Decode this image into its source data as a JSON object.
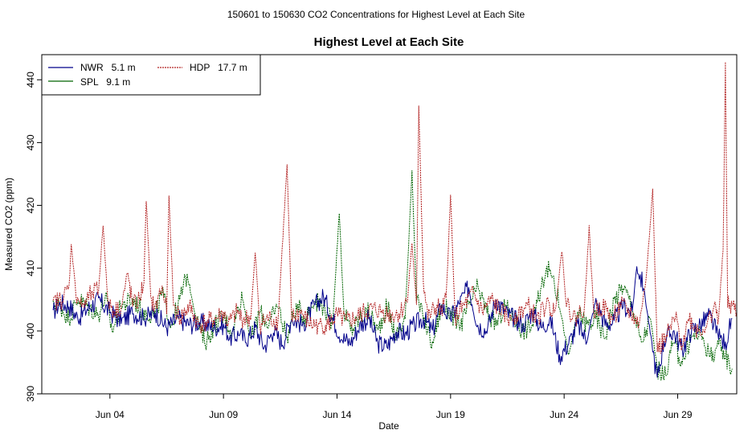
{
  "chart_data": {
    "type": "line",
    "suptitle": "150601  to  150630 CO2 Concentrations for Highest Level at Each Site",
    "title": "Highest Level at Each Site",
    "xlabel": "Date",
    "ylabel": "Measured CO2 (ppm)",
    "xlim_days": [
      0,
      30.6
    ],
    "ylim": [
      390,
      444
    ],
    "x_ticks": [
      {
        "day": 3,
        "label": "Jun 04"
      },
      {
        "day": 8,
        "label": "Jun 09"
      },
      {
        "day": 13,
        "label": "Jun 14"
      },
      {
        "day": 18,
        "label": "Jun 19"
      },
      {
        "day": 23,
        "label": "Jun 24"
      },
      {
        "day": 28,
        "label": "Jun 29"
      }
    ],
    "y_ticks": [
      390,
      400,
      410,
      420,
      430,
      440
    ],
    "legend_position": "top-left",
    "series": [
      {
        "name": "NWR   5.1 m",
        "color": "#00008b",
        "points": [
          [
            0.5,
            403
          ],
          [
            0.8,
            404.5
          ],
          [
            1.2,
            404
          ],
          [
            1.6,
            402
          ],
          [
            2,
            403.5
          ],
          [
            2.5,
            405
          ],
          [
            3,
            403
          ],
          [
            3.5,
            401.5
          ],
          [
            4,
            403
          ],
          [
            4.5,
            402
          ],
          [
            5,
            403
          ],
          [
            5.5,
            400.5
          ],
          [
            6,
            402
          ],
          [
            6.5,
            401
          ],
          [
            7,
            401.5
          ],
          [
            7.5,
            400.5
          ],
          [
            8,
            401
          ],
          [
            8.3,
            399
          ],
          [
            8.7,
            399.5
          ],
          [
            9,
            398.5
          ],
          [
            9.4,
            400.5
          ],
          [
            9.8,
            397.5
          ],
          [
            10.2,
            400
          ],
          [
            10.6,
            398
          ],
          [
            11,
            402
          ],
          [
            11.5,
            401
          ],
          [
            12,
            404
          ],
          [
            12.4,
            405.5
          ],
          [
            12.8,
            402
          ],
          [
            13.2,
            399
          ],
          [
            13.6,
            398
          ],
          [
            14,
            401
          ],
          [
            14.4,
            402
          ],
          [
            14.8,
            398
          ],
          [
            15.2,
            397.5
          ],
          [
            15.6,
            400
          ],
          [
            16,
            399.5
          ],
          [
            16.4,
            401
          ],
          [
            16.8,
            402
          ],
          [
            17.2,
            400
          ],
          [
            17.6,
            404
          ],
          [
            18,
            402
          ],
          [
            18.4,
            404.5
          ],
          [
            18.8,
            407
          ],
          [
            19.2,
            401
          ],
          [
            19.6,
            400
          ],
          [
            20,
            405
          ],
          [
            20.4,
            403
          ],
          [
            20.8,
            402
          ],
          [
            21.2,
            401
          ],
          [
            21.6,
            403
          ],
          [
            22,
            400.5
          ],
          [
            22.4,
            402
          ],
          [
            22.8,
            396
          ],
          [
            23.2,
            398
          ],
          [
            23.6,
            401
          ],
          [
            24,
            398.5
          ],
          [
            24.4,
            405
          ],
          [
            24.8,
            401
          ],
          [
            25.2,
            401.5
          ],
          [
            25.6,
            404
          ],
          [
            26,
            403
          ],
          [
            26.2,
            410.5
          ],
          [
            26.5,
            407
          ],
          [
            26.9,
            397
          ],
          [
            27.1,
            392.5
          ],
          [
            27.4,
            398.5
          ],
          [
            27.8,
            400
          ],
          [
            28.2,
            397
          ],
          [
            28.6,
            400
          ],
          [
            29,
            401
          ],
          [
            29.4,
            402.5
          ],
          [
            29.8,
            399
          ],
          [
            30.1,
            398
          ],
          [
            30.4,
            402
          ]
        ]
      },
      {
        "name": "SPL   9.1 m",
        "color": "#006400",
        "points": [
          [
            0.5,
            404.5
          ],
          [
            0.8,
            404
          ],
          [
            1.2,
            402
          ],
          [
            1.6,
            405
          ],
          [
            2,
            404
          ],
          [
            2.5,
            402.5
          ],
          [
            2.8,
            405.5
          ],
          [
            3.1,
            400
          ],
          [
            3.5,
            404
          ],
          [
            4,
            405
          ],
          [
            4.5,
            403
          ],
          [
            5,
            402.5
          ],
          [
            5.3,
            406
          ],
          [
            5.7,
            401
          ],
          [
            6,
            404
          ],
          [
            6.4,
            409
          ],
          [
            6.8,
            402
          ],
          [
            7.2,
            398
          ],
          [
            7.6,
            401
          ],
          [
            8,
            402
          ],
          [
            8.4,
            400
          ],
          [
            8.8,
            406
          ],
          [
            9.2,
            398.5
          ],
          [
            9.6,
            403
          ],
          [
            10,
            401
          ],
          [
            10.4,
            404
          ],
          [
            10.8,
            399
          ],
          [
            11.2,
            404
          ],
          [
            11.6,
            402
          ],
          [
            12,
            405
          ],
          [
            12.4,
            404
          ],
          [
            12.8,
            401
          ],
          [
            13.1,
            419
          ],
          [
            13.3,
            403
          ],
          [
            13.6,
            400
          ],
          [
            14,
            402
          ],
          [
            14.4,
            403
          ],
          [
            14.8,
            400
          ],
          [
            15.2,
            404
          ],
          [
            15.6,
            399
          ],
          [
            16,
            402
          ],
          [
            16.3,
            425.5
          ],
          [
            16.5,
            405
          ],
          [
            16.8,
            402
          ],
          [
            17.2,
            398
          ],
          [
            17.6,
            404
          ],
          [
            18,
            403
          ],
          [
            18.4,
            400.5
          ],
          [
            18.8,
            404
          ],
          [
            19.2,
            407
          ],
          [
            19.6,
            403
          ],
          [
            20,
            401
          ],
          [
            20.4,
            404
          ],
          [
            20.8,
            402
          ],
          [
            21.2,
            400
          ],
          [
            21.6,
            401
          ],
          [
            22,
            407
          ],
          [
            22.2,
            410
          ],
          [
            22.5,
            409
          ],
          [
            22.8,
            404
          ],
          [
            23.2,
            396
          ],
          [
            23.6,
            403
          ],
          [
            24,
            401
          ],
          [
            24.4,
            402
          ],
          [
            24.8,
            399
          ],
          [
            25.2,
            405
          ],
          [
            25.6,
            407
          ],
          [
            26,
            404
          ],
          [
            26.4,
            398
          ],
          [
            26.8,
            402
          ],
          [
            27.1,
            394
          ],
          [
            27.4,
            392.5
          ],
          [
            27.8,
            398
          ],
          [
            28.2,
            395
          ],
          [
            28.6,
            399
          ],
          [
            29,
            400
          ],
          [
            29.4,
            396
          ],
          [
            29.8,
            397.5
          ],
          [
            30.1,
            396
          ],
          [
            30.4,
            394
          ]
        ]
      },
      {
        "name": "HDP   17.7 m",
        "color": "#b22222",
        "points": [
          [
            0.5,
            404.5
          ],
          [
            0.9,
            405
          ],
          [
            1.2,
            407
          ],
          [
            1.3,
            414
          ],
          [
            1.5,
            406
          ],
          [
            1.8,
            404
          ],
          [
            2.2,
            406
          ],
          [
            2.5,
            406.5
          ],
          [
            2.7,
            417
          ],
          [
            2.9,
            405
          ],
          [
            3.2,
            403
          ],
          [
            3.5,
            404
          ],
          [
            3.8,
            409
          ],
          [
            4,
            404
          ],
          [
            4.3,
            405
          ],
          [
            4.5,
            408
          ],
          [
            4.6,
            421
          ],
          [
            4.8,
            405
          ],
          [
            5,
            404
          ],
          [
            5.3,
            407
          ],
          [
            5.5,
            403
          ],
          [
            5.6,
            421.5
          ],
          [
            5.8,
            404
          ],
          [
            6.1,
            402
          ],
          [
            6.5,
            404
          ],
          [
            6.9,
            401
          ],
          [
            7.3,
            401.5
          ],
          [
            7.7,
            402
          ],
          [
            8,
            403
          ],
          [
            8.2,
            401
          ],
          [
            8.6,
            403
          ],
          [
            8.8,
            402
          ],
          [
            9.2,
            402
          ],
          [
            9.4,
            412.5
          ],
          [
            9.6,
            401
          ],
          [
            10,
            402
          ],
          [
            10.4,
            401.5
          ],
          [
            10.8,
            426.5
          ],
          [
            11,
            402
          ],
          [
            11.4,
            403
          ],
          [
            11.8,
            401
          ],
          [
            12.2,
            401
          ],
          [
            12.6,
            401
          ],
          [
            13,
            402.5
          ],
          [
            13.4,
            401.5
          ],
          [
            13.8,
            402
          ],
          [
            14.2,
            403
          ],
          [
            14.6,
            403.5
          ],
          [
            15,
            403
          ],
          [
            15.4,
            402.5
          ],
          [
            15.8,
            403
          ],
          [
            16.1,
            405
          ],
          [
            16.3,
            414
          ],
          [
            16.5,
            404
          ],
          [
            16.6,
            436
          ],
          [
            16.8,
            408
          ],
          [
            17,
            402
          ],
          [
            17.4,
            404
          ],
          [
            17.6,
            403
          ],
          [
            17.8,
            405
          ],
          [
            18,
            421.5
          ],
          [
            18.2,
            402
          ],
          [
            18.6,
            404
          ],
          [
            19,
            406
          ],
          [
            19.4,
            403
          ],
          [
            19.8,
            405
          ],
          [
            20.2,
            403
          ],
          [
            20.6,
            402
          ],
          [
            21,
            403
          ],
          [
            21.4,
            404
          ],
          [
            21.8,
            402
          ],
          [
            22.2,
            404
          ],
          [
            22.6,
            403
          ],
          [
            22.9,
            413
          ],
          [
            23.1,
            404
          ],
          [
            23.5,
            402
          ],
          [
            23.9,
            404
          ],
          [
            24.1,
            416.5
          ],
          [
            24.3,
            403
          ],
          [
            24.7,
            404
          ],
          [
            25.1,
            402
          ],
          [
            25.5,
            404
          ],
          [
            25.9,
            403
          ],
          [
            26.3,
            401
          ],
          [
            26.6,
            408
          ],
          [
            26.9,
            422.5
          ],
          [
            27.1,
            397
          ],
          [
            27.5,
            399
          ],
          [
            27.9,
            402
          ],
          [
            28.2,
            398
          ],
          [
            28.5,
            402
          ],
          [
            28.9,
            400
          ],
          [
            29.3,
            401
          ],
          [
            29.6,
            404
          ],
          [
            29.8,
            402
          ],
          [
            30,
            413
          ],
          [
            30.1,
            442.5
          ],
          [
            30.2,
            404
          ],
          [
            30.4,
            404
          ],
          [
            30.6,
            403
          ]
        ]
      }
    ]
  }
}
